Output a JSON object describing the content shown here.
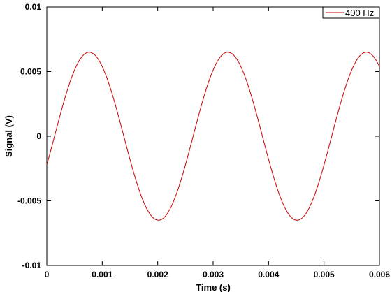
{
  "chart_data": {
    "type": "line",
    "title": "",
    "xlabel": "Time (s)",
    "ylabel": "Signal (V)",
    "xlim": [
      0,
      0.006
    ],
    "ylim": [
      -0.01,
      0.01
    ],
    "x_ticks": [
      0,
      0.001,
      0.002,
      0.003,
      0.004,
      0.005,
      0.006
    ],
    "x_tick_labels": [
      "0",
      "0.001",
      "0.002",
      "0.003",
      "0.004",
      "0.005",
      "0.006"
    ],
    "y_ticks": [
      0.01,
      0.005,
      0,
      -0.005,
      -0.01
    ],
    "y_tick_labels": [
      "0.01",
      "0.005",
      "0",
      "-0.005",
      "-0.01"
    ],
    "grid": false,
    "legend_position": "top-right",
    "series": [
      {
        "name": "400 Hz",
        "color": "#cc0000",
        "function": "sine",
        "frequency_hz": 400,
        "amplitude_v": 0.0065,
        "phase_deg": -20,
        "x_start": 0,
        "x_end": 0.006
      }
    ]
  }
}
